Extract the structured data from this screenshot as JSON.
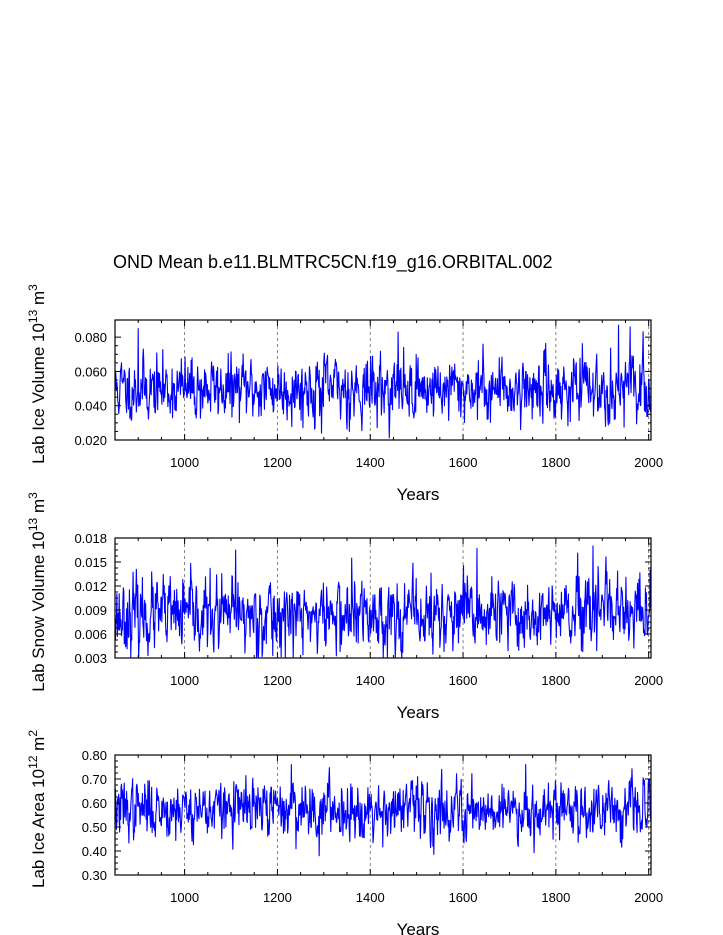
{
  "title": "OND Mean b.e11.BLMTRC5CN.f19_g16.ORBITAL.002",
  "series_color": "#0000ff",
  "chart_data": [
    {
      "type": "line",
      "ylabel": {
        "main": "Lab Ice Volume 10",
        "exp": "13",
        "unit": " m",
        "unit_exp": "3"
      },
      "xlabel": "Years",
      "xlim": [
        850,
        2005
      ],
      "ylim": [
        0.02,
        0.09
      ],
      "yticks": [
        0.02,
        0.04,
        0.06,
        0.08
      ],
      "ytick_labels": [
        "0.020",
        "0.040",
        "0.060",
        "0.080"
      ],
      "xticks": [
        1000,
        1200,
        1400,
        1600,
        1800,
        2000
      ],
      "xtick_labels": [
        "1000",
        "1200",
        "1400",
        "1600",
        "1800",
        "2000"
      ],
      "grid": "x-dashed",
      "series": [
        {
          "name": "Lab Ice Volume",
          "x_start": 850,
          "x_end": 2005,
          "mean": 0.05,
          "sd": 0.0085,
          "seed": 11,
          "spikes": [
            [
              900,
              0.085
            ],
            [
              1295,
              0.024
            ],
            [
              1355,
              0.025
            ],
            [
              1460,
              0.083
            ],
            [
              1935,
              0.087
            ],
            [
              1960,
              0.086
            ]
          ]
        }
      ]
    },
    {
      "type": "line",
      "ylabel": {
        "main": "Lab Snow Volume 10",
        "exp": "13",
        "unit": " m",
        "unit_exp": "3"
      },
      "xlabel": "Years",
      "xlim": [
        850,
        2005
      ],
      "ylim": [
        0.003,
        0.018
      ],
      "yticks": [
        0.003,
        0.006,
        0.009,
        0.012,
        0.015,
        0.018
      ],
      "ytick_labels": [
        "0.003",
        "0.006",
        "0.009",
        "0.012",
        "0.015",
        "0.018"
      ],
      "xticks": [
        1000,
        1200,
        1400,
        1600,
        1800,
        2000
      ],
      "xtick_labels": [
        "1000",
        "1200",
        "1400",
        "1600",
        "1800",
        "2000"
      ],
      "grid": "x-dashed",
      "series": [
        {
          "name": "Lab Snow Volume",
          "x_start": 850,
          "x_end": 2005,
          "mean": 0.0083,
          "sd": 0.0021,
          "seed": 23,
          "spikes": [
            [
              1110,
              0.0165
            ],
            [
              1190,
              0.0033
            ],
            [
              1360,
              0.0155
            ],
            [
              1630,
              0.0167
            ],
            [
              1880,
              0.017
            ],
            [
              2003,
              0.014
            ]
          ]
        }
      ]
    },
    {
      "type": "line",
      "ylabel": {
        "main": "Lab Ice Area 10",
        "exp": "12",
        "unit": " m",
        "unit_exp": "2"
      },
      "xlabel": "Years",
      "xlim": [
        850,
        2005
      ],
      "ylim": [
        0.3,
        0.8
      ],
      "yticks": [
        0.3,
        0.4,
        0.5,
        0.6,
        0.7,
        0.8
      ],
      "ytick_labels": [
        "0.30",
        "0.40",
        "0.50",
        "0.60",
        "0.70",
        "0.80"
      ],
      "xticks": [
        1000,
        1200,
        1400,
        1600,
        1800,
        2000
      ],
      "xtick_labels": [
        "1000",
        "1200",
        "1400",
        "1600",
        "1800",
        "2000"
      ],
      "grid": "x-dashed",
      "series": [
        {
          "name": "Lab Ice Area",
          "x_start": 850,
          "x_end": 2005,
          "mean": 0.575,
          "sd": 0.055,
          "seed": 37,
          "spikes": [
            [
              1230,
              0.76
            ],
            [
              1290,
              0.38
            ],
            [
              1735,
              0.76
            ],
            [
              1535,
              0.42
            ],
            [
              2000,
              0.7
            ]
          ]
        }
      ]
    }
  ]
}
